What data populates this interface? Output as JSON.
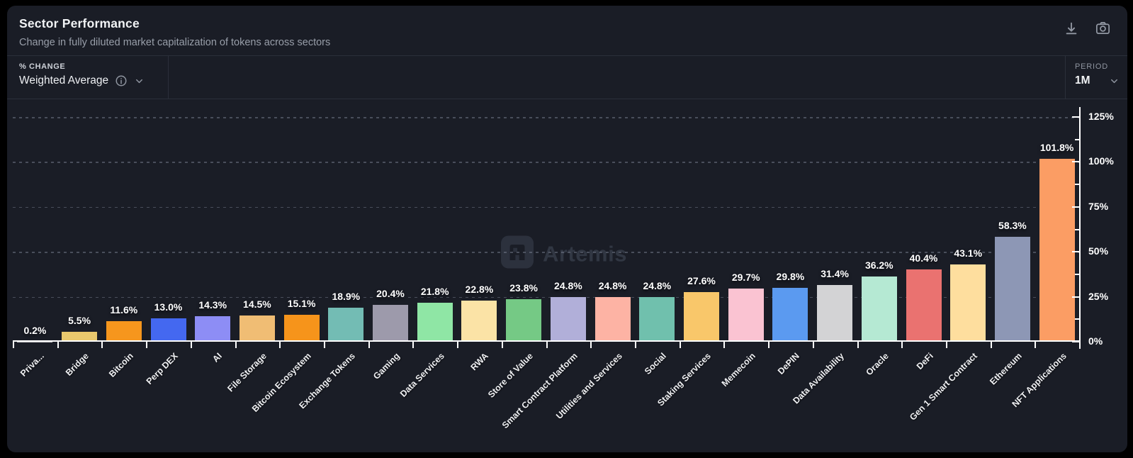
{
  "header": {
    "title": "Sector Performance",
    "subtitle": "Change in fully diluted market capitalization of tokens across sectors"
  },
  "controls": {
    "metric": {
      "label": "% CHANGE",
      "value": "Weighted Average"
    },
    "period": {
      "label": "PERIOD",
      "value": "1M"
    }
  },
  "watermark": {
    "text": "Artemis"
  },
  "colors": {
    "page_bg": "#000000",
    "panel_bg": "#1a1d26",
    "divider": "#2b2f3a",
    "grid": "rgba(130,138,155,0.45)",
    "axis": "#ffffff",
    "icon": "#9298a3",
    "watermark": "#313743"
  },
  "chart_data": {
    "type": "bar",
    "title": "Sector Performance",
    "ylim": [
      0,
      125
    ],
    "yticks_pct": [
      0,
      25,
      50,
      75,
      100,
      125
    ],
    "ytick_labels": [
      "0%",
      "25%",
      "50%",
      "75%",
      "100%",
      "125%"
    ],
    "grid": "dashed-horizontal",
    "legend": false,
    "categories": [
      "Priva...",
      "Bridge",
      "Bitcoin",
      "Perp DEX",
      "AI",
      "File Storage",
      "Bitcoin Ecosystem",
      "Exchange Tokens",
      "Gaming",
      "Data Services",
      "RWA",
      "Store of Value",
      "Smart Contract Platform",
      "Utilities and Services",
      "Social",
      "Staking Services",
      "Memecoin",
      "DePIN",
      "Data Availability",
      "Oracle",
      "DeFi",
      "Gen 1 Smart Contract",
      "Ethereum",
      "NFT Applications"
    ],
    "values": [
      0.2,
      5.5,
      11.6,
      13.0,
      14.3,
      14.5,
      15.1,
      18.9,
      20.4,
      21.8,
      22.8,
      23.8,
      24.8,
      24.8,
      24.8,
      27.6,
      29.7,
      29.8,
      31.4,
      36.2,
      40.4,
      43.1,
      58.3,
      101.8
    ],
    "value_labels": [
      "0.2%",
      "5.5%",
      "11.6%",
      "13.0%",
      "14.3%",
      "14.5%",
      "15.1%",
      "18.9%",
      "20.4%",
      "21.8%",
      "22.8%",
      "23.8%",
      "24.8%",
      "24.8%",
      "24.8%",
      "27.6%",
      "29.7%",
      "29.8%",
      "31.4%",
      "36.2%",
      "40.4%",
      "43.1%",
      "58.3%",
      "101.8%"
    ],
    "bar_colors": [
      "#cfcfcf",
      "#e9c86d",
      "#f6961d",
      "#4468f0",
      "#8d8df5",
      "#f0bd74",
      "#f6941b",
      "#73bcb4",
      "#9d9aab",
      "#8fe6a5",
      "#fbe3a6",
      "#75c985",
      "#b1afd9",
      "#fdb3a4",
      "#70c0ad",
      "#f9c76a",
      "#fac3d2",
      "#5b9af0",
      "#d3d3d5",
      "#b5e9d3",
      "#ea7270",
      "#fede9e",
      "#8d97b5",
      "#fb9d64"
    ]
  }
}
